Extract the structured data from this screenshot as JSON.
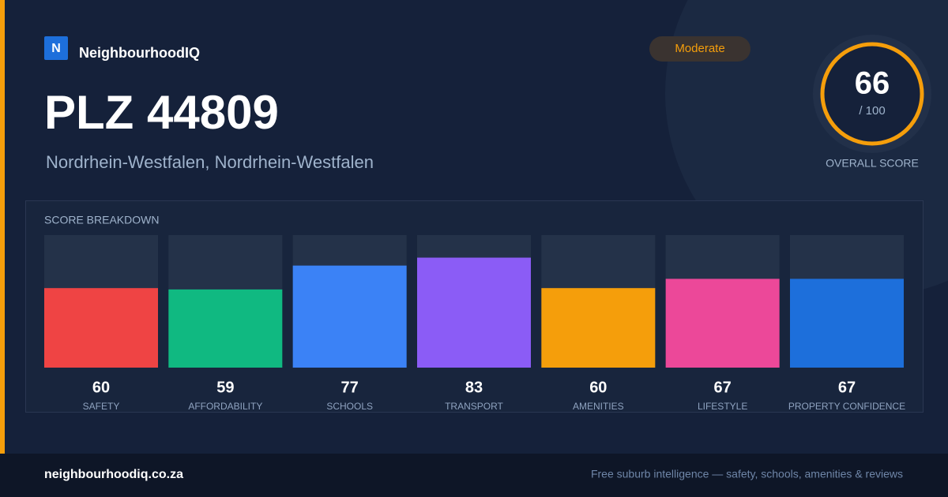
{
  "brand": {
    "logo": "N",
    "name": "NeighbourhoodIQ"
  },
  "badge": "Moderate",
  "title": "PLZ 44809",
  "subtitle": "Nordrhein-Westfalen, Nordrhein-Westfalen",
  "overall": {
    "score": 66,
    "out_of": "/ 100",
    "label": "OVERALL SCORE"
  },
  "chart_data": {
    "type": "bar",
    "title": "SCORE BREAKDOWN",
    "categories": [
      "SAFETY",
      "AFFORDABILITY",
      "SCHOOLS",
      "TRANSPORT",
      "AMENITIES",
      "LIFESTYLE",
      "PROPERTY CONFIDENCE"
    ],
    "values": [
      60,
      59,
      77,
      83,
      60,
      67,
      67
    ],
    "colors": [
      "#ef4444",
      "#10b981",
      "#3b82f6",
      "#8b5cf6",
      "#f59e0b",
      "#ec4899",
      "#1d6fdb"
    ],
    "ylim": [
      0,
      100
    ]
  },
  "footer": {
    "site": "neighbourhoodiq.co.za",
    "tagline": "Free suburb intelligence — safety, schools, amenities & reviews"
  }
}
